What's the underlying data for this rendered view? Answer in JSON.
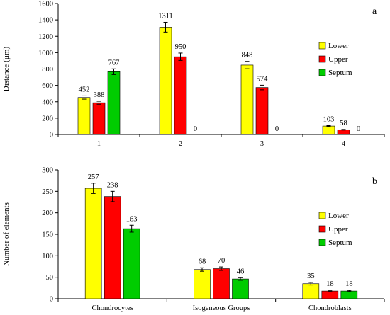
{
  "chart_data": [
    {
      "type": "bar",
      "panel_label": "a",
      "ylabel": "Distance (µm)",
      "xlabel": "",
      "ylim": [
        0,
        1600
      ],
      "yticks": [
        0,
        200,
        400,
        600,
        800,
        1000,
        1200,
        1400,
        1600
      ],
      "categories": [
        "1",
        "2",
        "3",
        "4"
      ],
      "series": [
        {
          "name": "Lower",
          "color": "#ffff00",
          "values": [
            452,
            1311,
            848,
            103
          ],
          "errors": [
            20,
            60,
            45,
            5
          ]
        },
        {
          "name": "Upper",
          "color": "#ff0000",
          "values": [
            388,
            950,
            574,
            58
          ],
          "errors": [
            18,
            45,
            28,
            4
          ]
        },
        {
          "name": "Septum",
          "color": "#00cc00",
          "values": [
            767,
            0,
            0,
            0
          ],
          "errors": [
            35,
            0,
            0,
            0
          ]
        }
      ],
      "data_labels": [
        [
          "452",
          "1311",
          "848",
          "103"
        ],
        [
          "388",
          "950",
          "574",
          "58"
        ],
        [
          "767",
          "0",
          "0",
          "0"
        ]
      ],
      "legend": {
        "position": "right",
        "entries": [
          "Lower",
          "Upper",
          "Septum"
        ]
      },
      "grid": false
    },
    {
      "type": "bar",
      "panel_label": "b",
      "ylabel": "Number of elements",
      "xlabel": "",
      "ylim": [
        0,
        300
      ],
      "yticks": [
        0,
        50,
        100,
        150,
        200,
        250,
        300
      ],
      "categories": [
        "Chondrocytes",
        "Isogeneous Groups",
        "Chondroblasts"
      ],
      "series": [
        {
          "name": "Lower",
          "color": "#ffff00",
          "values": [
            257,
            68,
            35
          ],
          "errors": [
            12,
            4,
            3
          ]
        },
        {
          "name": "Upper",
          "color": "#ff0000",
          "values": [
            238,
            70,
            18
          ],
          "errors": [
            12,
            4,
            1.5
          ]
        },
        {
          "name": "Septum",
          "color": "#00cc00",
          "values": [
            163,
            46,
            18
          ],
          "errors": [
            8,
            3,
            1.5
          ]
        }
      ],
      "data_labels": [
        [
          "257",
          "68",
          "35"
        ],
        [
          "238",
          "70",
          "18"
        ],
        [
          "163",
          "46",
          "18"
        ]
      ],
      "legend": {
        "position": "right",
        "entries": [
          "Lower",
          "Upper",
          "Septum"
        ]
      },
      "grid": false
    }
  ]
}
